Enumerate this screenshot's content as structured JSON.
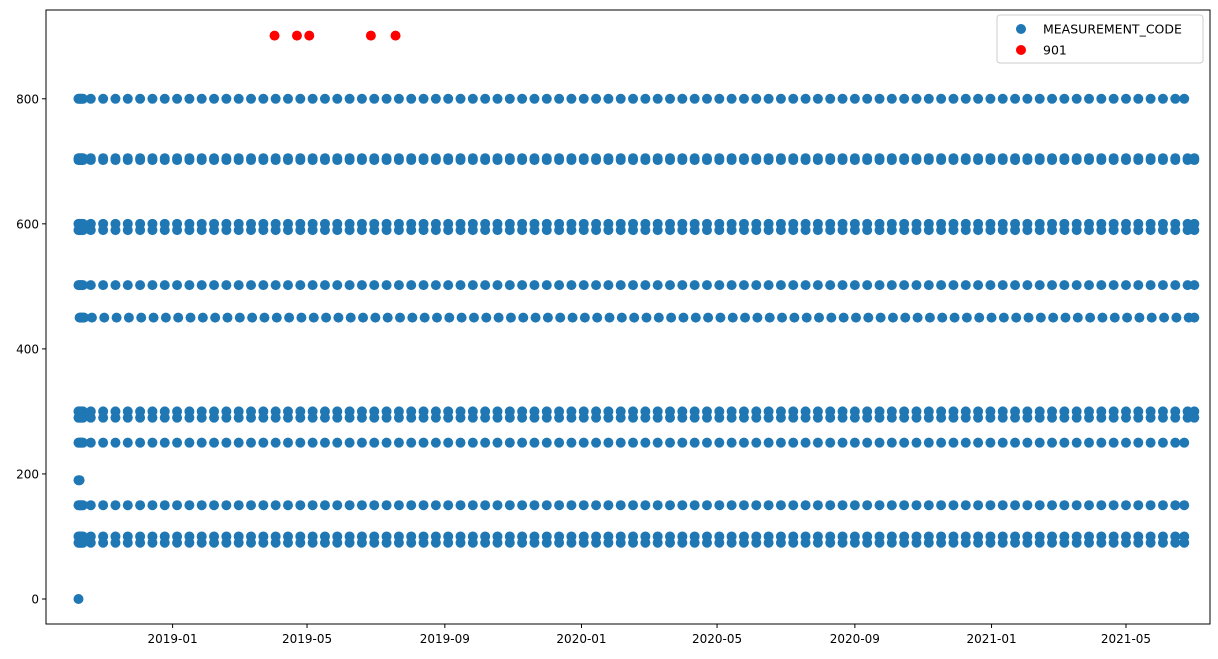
{
  "chart_data": {
    "type": "scatter",
    "xlabel": "",
    "ylabel": "",
    "xlim": [
      "2018-09-10",
      "2021-07-15"
    ],
    "ylim": [
      -40,
      942
    ],
    "xticks": [
      "2019-01",
      "2019-05",
      "2019-09",
      "2020-01",
      "2020-05",
      "2020-09",
      "2021-01",
      "2021-05"
    ],
    "yticks": [
      0,
      200,
      400,
      600,
      800
    ],
    "legend": {
      "position": "top-right",
      "entries": [
        "MEASUREMENT_CODE",
        "901"
      ]
    },
    "series": [
      {
        "name": "MEASUREMENT_CODE",
        "color": "#1f77b4",
        "points": [
          {
            "x": "2018-10-09",
            "y": 0
          },
          {
            "x": "2018-10-09",
            "y": 190
          },
          {
            "x": "2018-10-10",
            "y": 190
          }
        ],
        "levels": [
          {
            "y": 800,
            "start": "2018-10-09",
            "end": "2021-06-22",
            "step_days": 11
          },
          {
            "y": 702,
            "start": "2018-10-09",
            "end": "2021-07-01",
            "step_days": 11
          },
          {
            "y": 705,
            "start": "2018-10-09",
            "end": "2021-07-01",
            "step_days": 11
          },
          {
            "y": 600,
            "start": "2018-10-09",
            "end": "2021-07-01",
            "step_days": 11
          },
          {
            "y": 590,
            "start": "2018-10-09",
            "end": "2021-07-01",
            "step_days": 11
          },
          {
            "y": 502,
            "start": "2018-10-09",
            "end": "2021-07-01",
            "step_days": 11
          },
          {
            "y": 450,
            "start": "2018-10-10",
            "end": "2021-07-01",
            "step_days": 11
          },
          {
            "y": 300,
            "start": "2018-10-09",
            "end": "2021-07-01",
            "step_days": 11
          },
          {
            "y": 290,
            "start": "2018-10-09",
            "end": "2021-07-01",
            "step_days": 11
          },
          {
            "y": 250,
            "start": "2018-10-09",
            "end": "2021-06-22",
            "step_days": 11
          },
          {
            "y": 150,
            "start": "2018-10-09",
            "end": "2021-06-22",
            "step_days": 11
          },
          {
            "y": 100,
            "start": "2018-10-09",
            "end": "2021-06-22",
            "step_days": 11
          },
          {
            "y": 90,
            "start": "2018-10-09",
            "end": "2021-06-22",
            "step_days": 11
          }
        ]
      },
      {
        "name": "901",
        "color": "#ff0000",
        "points": [
          {
            "x": "2019-04-02",
            "y": 901
          },
          {
            "x": "2019-04-22",
            "y": 901
          },
          {
            "x": "2019-05-03",
            "y": 901
          },
          {
            "x": "2019-06-27",
            "y": 901
          },
          {
            "x": "2019-07-19",
            "y": 901
          }
        ]
      }
    ]
  }
}
